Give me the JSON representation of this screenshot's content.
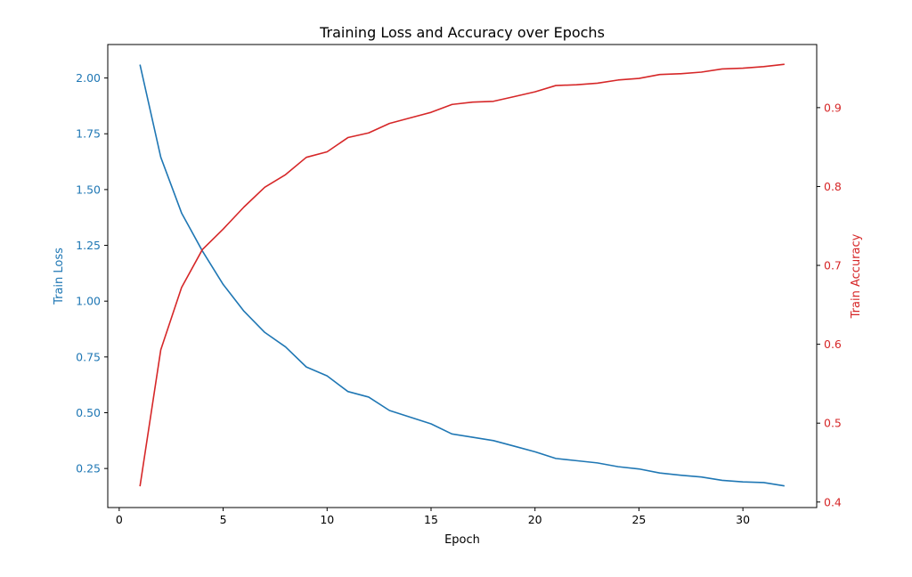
{
  "chart_data": {
    "type": "line",
    "title": "Training Loss and Accuracy over Epochs",
    "xlabel": "Epoch",
    "xlim": [
      -0.55,
      33.55
    ],
    "xticks": [
      0,
      5,
      10,
      15,
      20,
      25,
      30
    ],
    "grid": false,
    "colors": {
      "loss": "#1f77b4",
      "accuracy": "#d62728"
    },
    "x": [
      1,
      2,
      3,
      4,
      5,
      6,
      7,
      8,
      9,
      10,
      11,
      12,
      13,
      14,
      15,
      16,
      17,
      18,
      19,
      20,
      21,
      22,
      23,
      24,
      25,
      26,
      27,
      28,
      29,
      30,
      31,
      32
    ],
    "series": [
      {
        "name": "Train Loss",
        "axis": "left",
        "color": "#1f77b4",
        "ylim": [
          0.075,
          2.15
        ],
        "yticks": [
          0.25,
          0.5,
          0.75,
          1.0,
          1.25,
          1.5,
          1.75,
          2.0
        ],
        "values": [
          2.06,
          1.645,
          1.395,
          1.225,
          1.075,
          0.955,
          0.86,
          0.795,
          0.705,
          0.665,
          0.595,
          0.57,
          0.51,
          0.48,
          0.45,
          0.405,
          0.39,
          0.375,
          0.35,
          0.325,
          0.295,
          0.285,
          0.275,
          0.258,
          0.248,
          0.23,
          0.22,
          0.212,
          0.197,
          0.19,
          0.187,
          0.172
        ]
      },
      {
        "name": "Train Accuracy",
        "axis": "right",
        "color": "#d62728",
        "ylim": [
          0.393,
          0.98
        ],
        "yticks": [
          0.4,
          0.5,
          0.6,
          0.7,
          0.8,
          0.9
        ],
        "values": [
          0.42,
          0.593,
          0.672,
          0.72,
          0.746,
          0.774,
          0.799,
          0.815,
          0.837,
          0.844,
          0.862,
          0.868,
          0.88,
          0.887,
          0.894,
          0.904,
          0.907,
          0.908,
          0.914,
          0.92,
          0.928,
          0.929,
          0.931,
          0.935,
          0.937,
          0.942,
          0.943,
          0.945,
          0.949,
          0.95,
          0.952,
          0.955
        ]
      }
    ]
  }
}
